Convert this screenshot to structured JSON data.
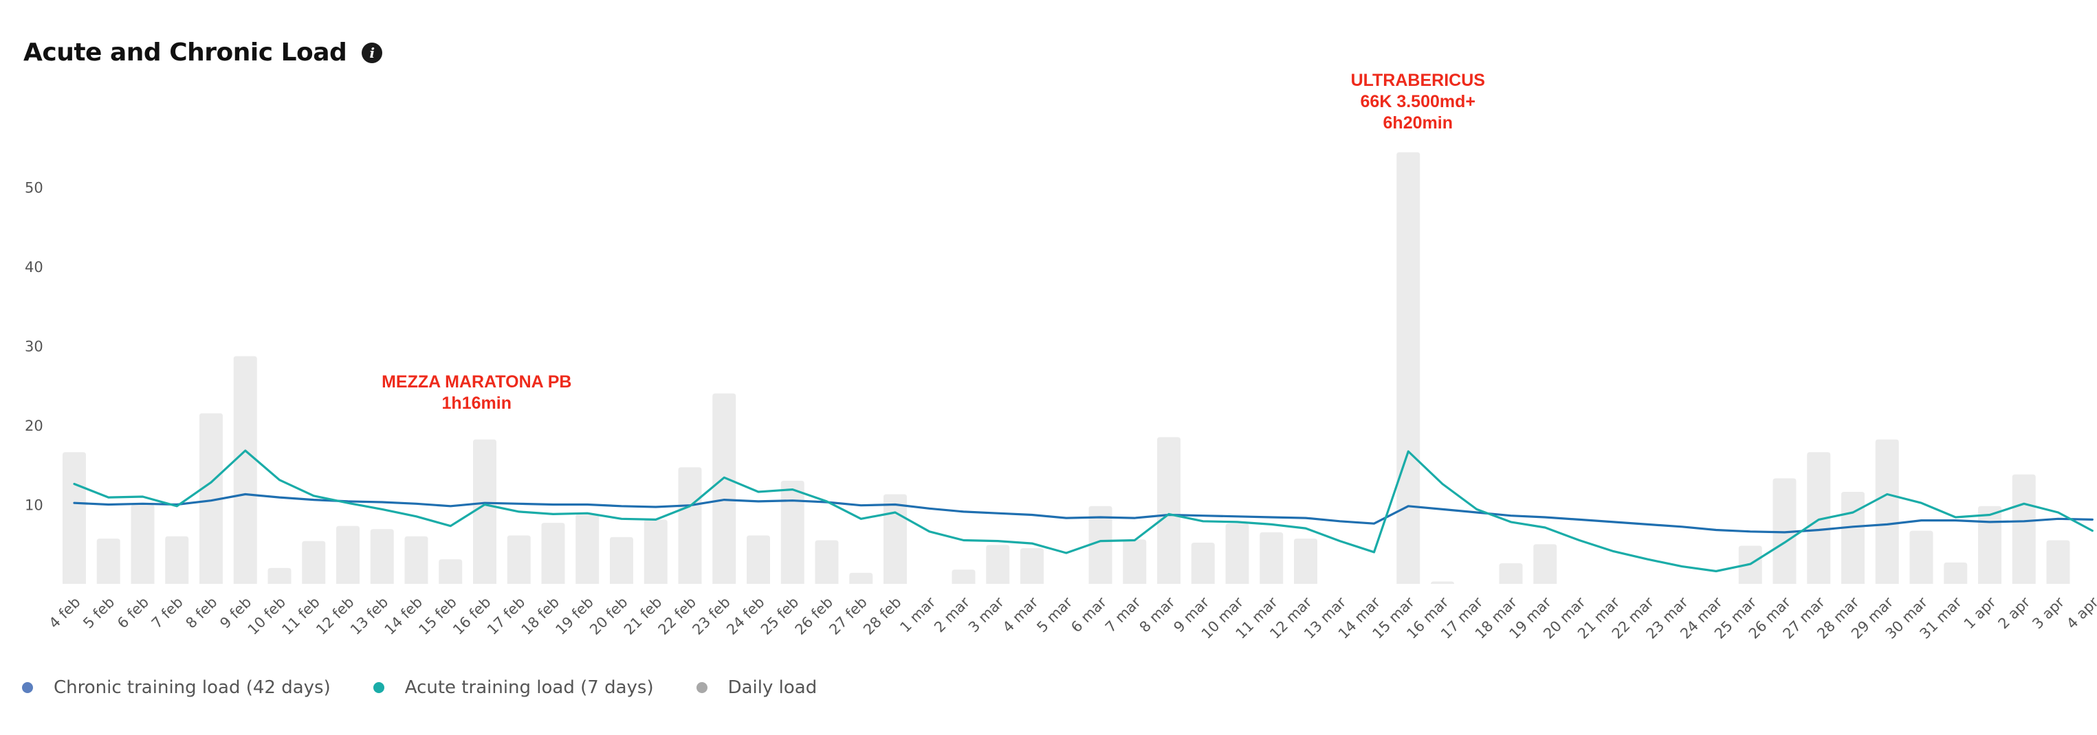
{
  "header": {
    "title": "Acute and Chronic Load",
    "info_icon": "info-icon"
  },
  "legend": {
    "items": [
      {
        "label": "Chronic training load (42 days)",
        "color": "#5b7fbf"
      },
      {
        "label": "Acute training load (7 days)",
        "color": "#1aaca8"
      },
      {
        "label": "Daily load",
        "color": "#a8a8a8"
      }
    ]
  },
  "chart_data": {
    "type": "bar",
    "title": "Acute and Chronic Load",
    "xlabel": "",
    "ylabel": "",
    "ylim": [
      0,
      60
    ],
    "yticks": [
      10,
      20,
      30,
      40,
      50
    ],
    "grid": false,
    "legend_position": "bottom-left",
    "categories": [
      "4 feb",
      "5 feb",
      "6 feb",
      "7 feb",
      "8 feb",
      "9 feb",
      "10 feb",
      "11 feb",
      "12 feb",
      "13 feb",
      "14 feb",
      "15 feb",
      "16 feb",
      "17 feb",
      "18 feb",
      "19 feb",
      "20 feb",
      "21 feb",
      "22 feb",
      "23 feb",
      "24 feb",
      "25 feb",
      "26 feb",
      "27 feb",
      "28 feb",
      "1 mar",
      "2 mar",
      "3 mar",
      "4 mar",
      "5 mar",
      "6 mar",
      "7 mar",
      "8 mar",
      "9 mar",
      "10 mar",
      "11 mar",
      "12 mar",
      "13 mar",
      "14 mar",
      "15 mar",
      "16 mar",
      "17 mar",
      "18 mar",
      "19 mar",
      "20 mar",
      "21 mar",
      "22 mar",
      "23 mar",
      "24 mar",
      "25 mar",
      "26 mar",
      "27 mar",
      "28 mar",
      "29 mar",
      "30 mar",
      "31 mar",
      "1 apr",
      "2 apr",
      "3 apr",
      "4 apr"
    ],
    "series": [
      {
        "name": "Daily load",
        "type": "bar",
        "color": "#ebebeb",
        "values": [
          16.6,
          5.7,
          10.0,
          6.0,
          21.5,
          28.7,
          2.0,
          5.4,
          7.3,
          6.9,
          6.0,
          3.1,
          18.2,
          6.1,
          7.7,
          8.8,
          5.9,
          8.1,
          14.7,
          24.0,
          6.1,
          13.0,
          5.5,
          1.4,
          11.3,
          0,
          1.8,
          4.9,
          4.5,
          0,
          9.8,
          5.6,
          18.5,
          5.2,
          7.6,
          6.5,
          5.7,
          0,
          0,
          54.4,
          0.3,
          0,
          2.6,
          5.0,
          0,
          0,
          0,
          0,
          0,
          4.8,
          13.3,
          16.6,
          11.6,
          18.2,
          6.7,
          2.7,
          9.8,
          13.8,
          5.5,
          0
        ]
      },
      {
        "name": "Chronic training load (42 days)",
        "type": "line",
        "color": "#1f6fb0",
        "values": [
          10.2,
          10.0,
          10.1,
          10.0,
          10.5,
          11.3,
          10.9,
          10.6,
          10.4,
          10.3,
          10.1,
          9.8,
          10.2,
          10.1,
          10.0,
          10.0,
          9.8,
          9.7,
          9.9,
          10.6,
          10.4,
          10.5,
          10.3,
          9.9,
          10.0,
          9.5,
          9.1,
          8.9,
          8.7,
          8.3,
          8.4,
          8.3,
          8.7,
          8.6,
          8.5,
          8.4,
          8.3,
          7.9,
          7.6,
          9.8,
          9.4,
          9.0,
          8.6,
          8.4,
          8.1,
          7.8,
          7.5,
          7.2,
          6.8,
          6.6,
          6.5,
          6.8,
          7.2,
          7.5,
          8.0,
          8.0,
          7.8,
          7.9,
          8.2,
          8.1
        ]
      },
      {
        "name": "Acute training load (7 days)",
        "type": "line",
        "color": "#1aaca8",
        "values": [
          12.6,
          10.9,
          11.0,
          9.8,
          12.8,
          16.8,
          13.1,
          11.1,
          10.2,
          9.4,
          8.5,
          7.3,
          10.0,
          9.1,
          8.8,
          8.9,
          8.2,
          8.1,
          9.8,
          13.4,
          11.6,
          11.9,
          10.4,
          8.2,
          9.0,
          6.6,
          5.5,
          5.4,
          5.1,
          3.9,
          5.4,
          5.5,
          8.8,
          7.9,
          7.8,
          7.5,
          7.0,
          5.4,
          4.0,
          16.7,
          12.6,
          9.4,
          7.8,
          7.1,
          5.5,
          4.1,
          3.1,
          2.2,
          1.6,
          2.5,
          5.2,
          8.1,
          9.0,
          11.3,
          10.2,
          8.4,
          8.7,
          10.1,
          9.0,
          6.7
        ]
      }
    ],
    "annotations": [
      {
        "category": "15 feb",
        "lines": [
          "MEZZA MARATONA PB",
          "1h16min"
        ],
        "color": "#ee2a1b"
      },
      {
        "category": "15 mar",
        "lines": [
          "ULTRABERICUS",
          "66K 3.500md+",
          "6h20min"
        ],
        "color": "#ee2a1b"
      }
    ]
  }
}
